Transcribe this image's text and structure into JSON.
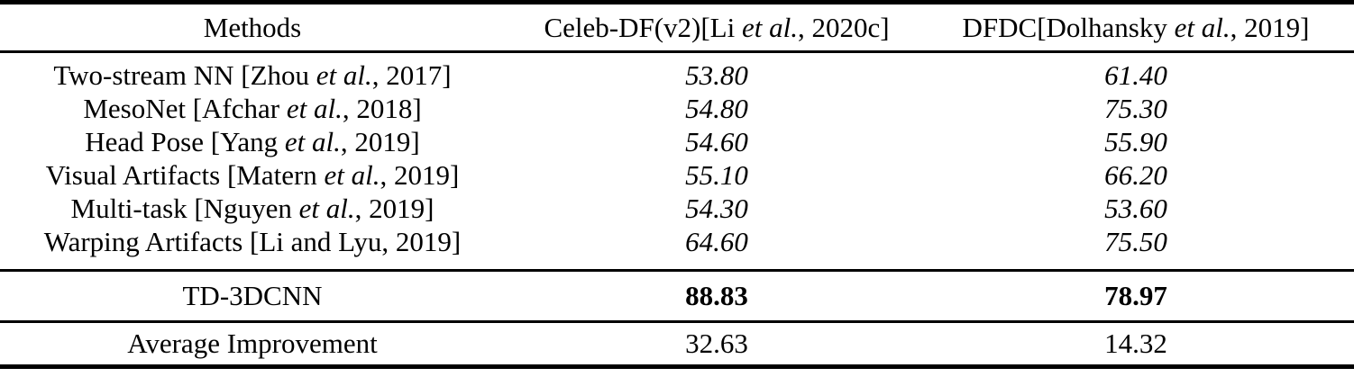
{
  "colors": {
    "text": "#000000",
    "rule": "#000000",
    "background": "#ffffff"
  },
  "table": {
    "header": {
      "methods": "Methods",
      "celebdf": {
        "pre": "Celeb-DF(v2)[Li ",
        "em": "et al.",
        "post": ", 2020c]"
      },
      "dfdc": {
        "pre": "DFDC[Dolhansky ",
        "em": "et al.",
        "post": ", 2019]"
      }
    },
    "rows": [
      {
        "method": {
          "pre": "Two-stream NN [Zhou ",
          "em": "et al.",
          "post": ", 2017]"
        },
        "celebdf": "53.80",
        "dfdc": "61.40"
      },
      {
        "method": {
          "pre": "MesoNet [Afchar ",
          "em": "et al.",
          "post": ", 2018]"
        },
        "celebdf": "54.80",
        "dfdc": "75.30"
      },
      {
        "method": {
          "pre": "Head Pose [Yang ",
          "em": "et al.",
          "post": ", 2019]"
        },
        "celebdf": "54.60",
        "dfdc": "55.90"
      },
      {
        "method": {
          "pre": "Visual Artifacts [Matern ",
          "em": "et al.",
          "post": ", 2019]"
        },
        "celebdf": "55.10",
        "dfdc": "66.20"
      },
      {
        "method": {
          "pre": "Multi-task [Nguyen ",
          "em": "et al.",
          "post": ", 2019]"
        },
        "celebdf": "54.30",
        "dfdc": "53.60"
      },
      {
        "method": {
          "pre": "Warping Artifacts [Li and Lyu, 2019]",
          "em": "",
          "post": ""
        },
        "celebdf": "64.60",
        "dfdc": "75.50"
      }
    ],
    "highlight_row": {
      "method": "TD-3DCNN",
      "celebdf": "88.83",
      "dfdc": "78.97"
    },
    "summary_row": {
      "method": "Average Improvement",
      "celebdf": "32.63",
      "dfdc": "14.32"
    }
  }
}
